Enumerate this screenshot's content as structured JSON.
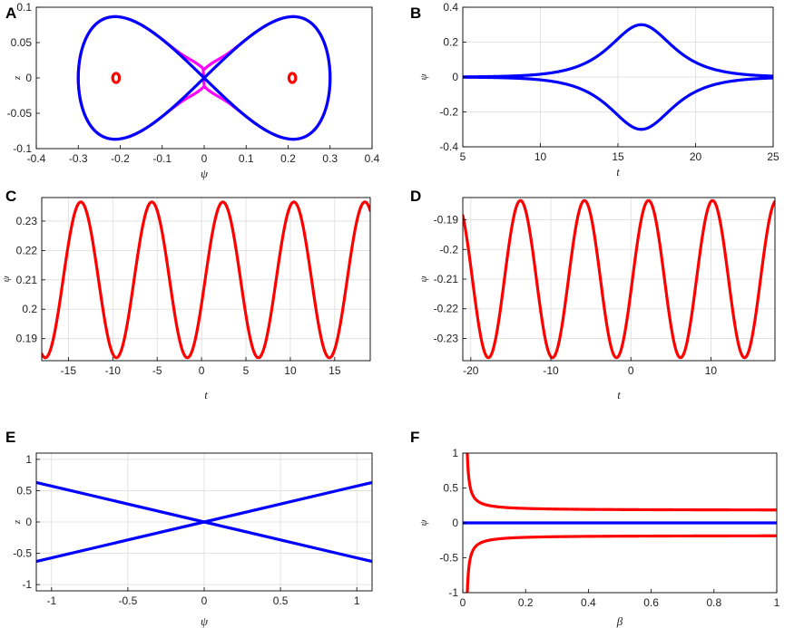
{
  "chart_data": [
    {
      "id": "A",
      "type": "line",
      "panel_label": "A",
      "xlabel": "ψ",
      "ylabel": "z",
      "xlim": [
        -0.4,
        0.4
      ],
      "ylim": [
        -0.1,
        0.1
      ],
      "xticks": [
        "-0.4",
        "-0.3",
        "-0.2",
        "-0.1",
        "0",
        "0.1",
        "0.2",
        "0.3",
        "0.4"
      ],
      "yticks": [
        "-0.1",
        "-0.05",
        "0",
        "0.05",
        "0.1"
      ],
      "grid": false,
      "series_colors": [
        "#ff00ff",
        "#0000ff",
        "#ff0000"
      ],
      "series": [
        {
          "kind": "outer-orbit",
          "color": "#ff00ff",
          "max_psi": 0.3,
          "max_z": 0.085
        },
        {
          "kind": "separatrix",
          "color": "#0000ff",
          "max_psi": 0.3,
          "max_z": 0.085
        },
        {
          "kind": "small-orbits",
          "color": "#ff0000",
          "centers": [
            [
              -0.21,
              0
            ],
            [
              0.21,
              0
            ]
          ],
          "radius_psi": 0.008,
          "radius_z": 0.0065
        }
      ]
    },
    {
      "id": "B",
      "type": "line",
      "panel_label": "B",
      "xlabel": "t",
      "ylabel": "ψ",
      "xlim": [
        5,
        25
      ],
      "ylim": [
        -0.4,
        0.4
      ],
      "xticks": [
        "5",
        "10",
        "15",
        "20",
        "25"
      ],
      "yticks": [
        "-0.4",
        "-0.2",
        "0",
        "0.2",
        "0.4"
      ],
      "grid": true,
      "series": [
        {
          "color": "#0000ff",
          "kind": "sech",
          "amplitude": 0.3,
          "center": 16.5,
          "width": 1.8
        },
        {
          "color": "#0000ff",
          "kind": "sech",
          "amplitude": -0.3,
          "center": 16.5,
          "width": 1.8
        }
      ]
    },
    {
      "id": "C",
      "type": "line",
      "panel_label": "C",
      "xlabel": "t",
      "ylabel": "ψ",
      "xlim": [
        -18,
        19
      ],
      "ylim": [
        0.1825,
        0.238
      ],
      "xticks": [
        "-15",
        "-10",
        "-5",
        "0",
        "5",
        "10",
        "15"
      ],
      "yticks": [
        "0.19",
        "0.2",
        "0.21",
        "0.22",
        "0.23"
      ],
      "grid": true,
      "series": [
        {
          "color": "#ff0000",
          "kind": "periodic",
          "min": 0.1835,
          "max": 0.2365,
          "period": 8.0,
          "peak_at": -13.6
        }
      ]
    },
    {
      "id": "D",
      "type": "line",
      "panel_label": "D",
      "xlabel": "t",
      "ylabel": "ψ",
      "xlim": [
        -21,
        18
      ],
      "ylim": [
        -0.2375,
        -0.1825
      ],
      "xticks": [
        "-20",
        "-10",
        "0",
        "10"
      ],
      "yticks": [
        "-0.23",
        "-0.22",
        "-0.21",
        "-0.2",
        "-0.19"
      ],
      "grid": true,
      "series": [
        {
          "color": "#ff0000",
          "kind": "periodic",
          "min": -0.2365,
          "max": -0.1835,
          "period": 8.0,
          "peak_at": -13.8
        }
      ]
    },
    {
      "id": "E",
      "type": "line",
      "panel_label": "E",
      "xlabel": "ψ",
      "ylabel": "z",
      "xlim": [
        -1.1,
        1.1
      ],
      "ylim": [
        -1.1,
        1.1
      ],
      "xticks": [
        "-1",
        "-0.5",
        "0",
        "0.5",
        "1"
      ],
      "yticks": [
        "-1",
        "-0.5",
        "0",
        "0.5",
        "1"
      ],
      "grid": true,
      "series": [
        {
          "color": "#0000ff",
          "kind": "linear",
          "slope": 0.573
        },
        {
          "color": "#0000ff",
          "kind": "linear",
          "slope": -0.573
        }
      ]
    },
    {
      "id": "F",
      "type": "line",
      "panel_label": "F",
      "xlabel": "β",
      "ylabel": "ψ",
      "xlim": [
        0,
        1
      ],
      "ylim": [
        -1,
        1
      ],
      "xticks": [
        "0",
        "0.2",
        "0.4",
        "0.6",
        "0.8",
        "1"
      ],
      "yticks": [
        "-1",
        "-0.5",
        "0",
        "0.5",
        "1"
      ],
      "grid": false,
      "series": [
        {
          "color": "#ff0000",
          "kind": "decay-upper",
          "asymptote": 0.18
        },
        {
          "color": "#ff0000",
          "kind": "decay-lower",
          "asymptote": -0.18
        },
        {
          "color": "#0000ff",
          "kind": "zero-line",
          "value": 0
        }
      ]
    }
  ]
}
